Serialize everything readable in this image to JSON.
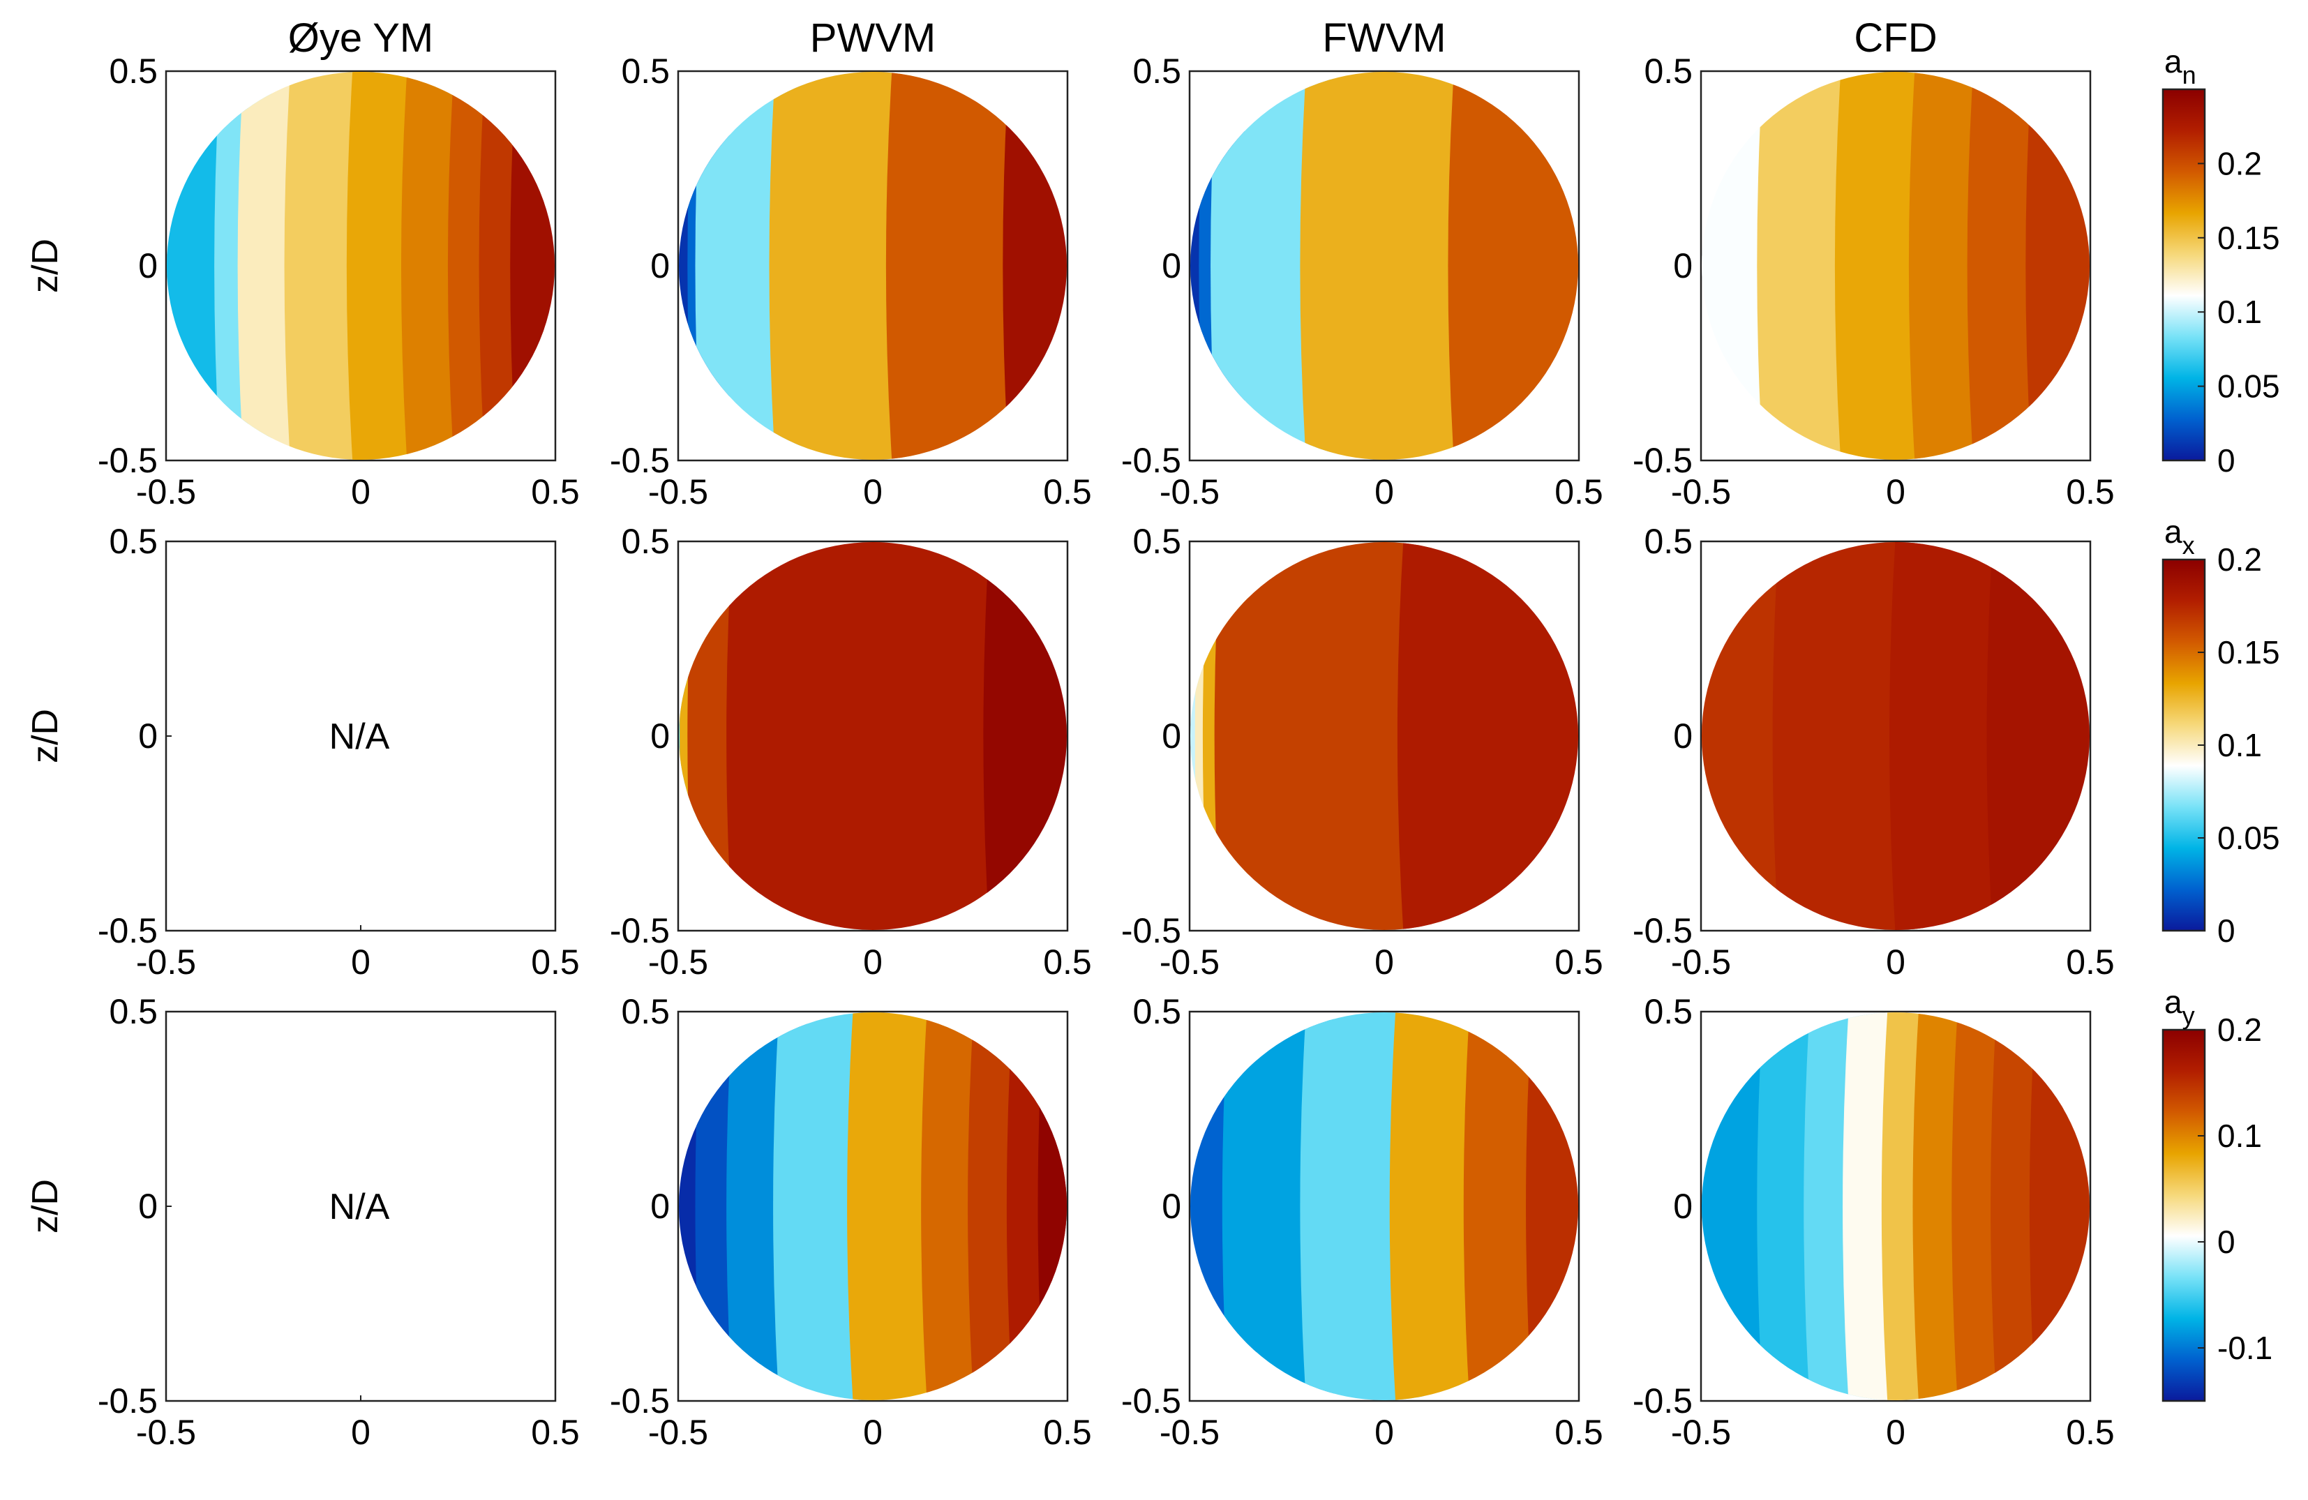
{
  "chart_data": {
    "type": "heatmap",
    "description_axes": "rotor-plane contour maps; x-axis y/D, y-axis z/D",
    "columns": [
      "Øye YM",
      "PWVM",
      "FWVM",
      "CFD"
    ],
    "ylabel": "z/D",
    "xlim": [
      -0.5,
      0.5
    ],
    "ylim": [
      -0.5,
      0.5
    ],
    "x_ticks": [
      "-0.5",
      "0",
      "0.5"
    ],
    "y_ticks": [
      "0.5",
      "0",
      "-0.5"
    ],
    "na_label": "N/A",
    "rows": [
      {
        "variable": "a_n",
        "var_main": "a",
        "var_sub": "n",
        "clim": [
          0,
          0.25
        ],
        "colorbar_ticks": [
          "0.2",
          "0.15",
          "0.1",
          "0.05",
          "0"
        ],
        "colorbar_tick_values": [
          0.2,
          0.15,
          0.1,
          0.05,
          0
        ],
        "panels": [
          {
            "model": "Øye YM",
            "available": true,
            "layers": [
              {
                "x0": -0.5,
                "x1": -0.36,
                "value": 0.06
              },
              {
                "x0": -0.36,
                "x1": -0.3,
                "value": 0.085
              },
              {
                "x0": -0.3,
                "x1": -0.18,
                "value": 0.125
              },
              {
                "x0": -0.18,
                "x1": -0.02,
                "value": 0.145
              },
              {
                "x0": -0.02,
                "x1": 0.12,
                "value": 0.165
              },
              {
                "x0": 0.12,
                "x1": 0.24,
                "value": 0.18
              },
              {
                "x0": 0.24,
                "x1": 0.32,
                "value": 0.195
              },
              {
                "x0": 0.32,
                "x1": 0.4,
                "value": 0.21
              },
              {
                "x0": 0.4,
                "x1": 0.5,
                "value": 0.235
              }
            ]
          },
          {
            "model": "PWVM",
            "available": true,
            "layers": [
              {
                "x0": -0.5,
                "x1": -0.46,
                "value": 0.01
              },
              {
                "x0": -0.46,
                "x1": -0.44,
                "value": 0.03
              },
              {
                "x0": -0.44,
                "x1": -0.25,
                "value": 0.085
              },
              {
                "x0": -0.25,
                "x1": 0.05,
                "value": 0.16
              },
              {
                "x0": 0.05,
                "x1": 0.35,
                "value": 0.195
              },
              {
                "x0": 0.35,
                "x1": 0.5,
                "value": 0.235
              }
            ]
          },
          {
            "model": "FWVM",
            "available": true,
            "layers": [
              {
                "x0": -0.5,
                "x1": -0.46,
                "value": 0.01
              },
              {
                "x0": -0.46,
                "x1": -0.43,
                "value": 0.03
              },
              {
                "x0": -0.43,
                "x1": -0.2,
                "value": 0.085
              },
              {
                "x0": -0.2,
                "x1": 0.18,
                "value": 0.16
              },
              {
                "x0": 0.18,
                "x1": 0.5,
                "value": 0.195
              }
            ]
          },
          {
            "model": "CFD",
            "available": true,
            "layers": [
              {
                "x0": -0.5,
                "x1": -0.34,
                "value": 0.11
              },
              {
                "x0": -0.34,
                "x1": -0.14,
                "value": 0.145
              },
              {
                "x0": -0.14,
                "x1": 0.05,
                "value": 0.165
              },
              {
                "x0": 0.05,
                "x1": 0.2,
                "value": 0.18
              },
              {
                "x0": 0.2,
                "x1": 0.35,
                "value": 0.195
              },
              {
                "x0": 0.35,
                "x1": 0.5,
                "value": 0.21
              }
            ]
          }
        ]
      },
      {
        "variable": "a_x",
        "var_main": "a",
        "var_sub": "x",
        "clim": [
          0,
          0.2
        ],
        "colorbar_ticks": [
          "0.2",
          "0.15",
          "0.1",
          "0.05",
          "0"
        ],
        "colorbar_tick_values": [
          0.2,
          0.15,
          0.1,
          0.05,
          0
        ],
        "panels": [
          {
            "model": "Øye YM",
            "available": false,
            "layers": []
          },
          {
            "model": "PWVM",
            "available": true,
            "layers": [
              {
                "x0": -0.5,
                "x1": -0.48,
                "value": 0.06
              },
              {
                "x0": -0.48,
                "x1": -0.46,
                "value": 0.13
              },
              {
                "x0": -0.46,
                "x1": -0.36,
                "value": 0.165
              },
              {
                "x0": -0.36,
                "x1": 0.3,
                "value": 0.18
              },
              {
                "x0": 0.3,
                "x1": 0.5,
                "value": 0.195
              }
            ]
          },
          {
            "model": "FWVM",
            "available": true,
            "layers": [
              {
                "x0": -0.5,
                "x1": -0.47,
                "value": 0.08
              },
              {
                "x0": -0.47,
                "x1": -0.45,
                "value": 0.1
              },
              {
                "x0": -0.45,
                "x1": -0.42,
                "value": 0.13
              },
              {
                "x0": -0.42,
                "x1": 0.05,
                "value": 0.165
              },
              {
                "x0": 0.05,
                "x1": 0.5,
                "value": 0.18
              }
            ]
          },
          {
            "model": "CFD",
            "available": true,
            "layers": [
              {
                "x0": -0.5,
                "x1": -0.3,
                "value": 0.17
              },
              {
                "x0": -0.3,
                "x1": 0.0,
                "value": 0.175
              },
              {
                "x0": 0.0,
                "x1": 0.25,
                "value": 0.18
              },
              {
                "x0": 0.25,
                "x1": 0.5,
                "value": 0.185
              }
            ]
          }
        ]
      },
      {
        "variable": "a_y",
        "var_main": "a",
        "var_sub": "y",
        "clim": [
          -0.15,
          0.2
        ],
        "colorbar_ticks": [
          "0.2",
          "0.1",
          "0",
          "-0.1"
        ],
        "colorbar_tick_values": [
          0.2,
          0.1,
          0,
          -0.1
        ],
        "panels": [
          {
            "model": "Øye YM",
            "available": false,
            "layers": []
          },
          {
            "model": "PWVM",
            "available": true,
            "layers": [
              {
                "x0": -0.5,
                "x1": -0.44,
                "value": -0.14
              },
              {
                "x0": -0.44,
                "x1": -0.36,
                "value": -0.12
              },
              {
                "x0": -0.36,
                "x1": -0.24,
                "value": -0.09
              },
              {
                "x0": -0.24,
                "x1": -0.05,
                "value": -0.04
              },
              {
                "x0": -0.05,
                "x1": 0.14,
                "value": 0.08
              },
              {
                "x0": 0.14,
                "x1": 0.26,
                "value": 0.115
              },
              {
                "x0": 0.26,
                "x1": 0.36,
                "value": 0.14
              },
              {
                "x0": 0.36,
                "x1": 0.44,
                "value": 0.165
              },
              {
                "x0": 0.44,
                "x1": 0.5,
                "value": 0.195
              }
            ]
          },
          {
            "model": "FWVM",
            "available": true,
            "layers": [
              {
                "x0": -0.5,
                "x1": -0.4,
                "value": -0.11
              },
              {
                "x0": -0.4,
                "x1": -0.2,
                "value": -0.08
              },
              {
                "x0": -0.2,
                "x1": 0.03,
                "value": -0.04
              },
              {
                "x0": 0.03,
                "x1": 0.22,
                "value": 0.08
              },
              {
                "x0": 0.22,
                "x1": 0.38,
                "value": 0.12
              },
              {
                "x0": 0.38,
                "x1": 0.5,
                "value": 0.15
              }
            ]
          },
          {
            "model": "CFD",
            "available": true,
            "layers": [
              {
                "x0": -0.5,
                "x1": -0.34,
                "value": -0.08
              },
              {
                "x0": -0.34,
                "x1": -0.22,
                "value": -0.06
              },
              {
                "x0": -0.22,
                "x1": -0.12,
                "value": -0.04
              },
              {
                "x0": -0.12,
                "x1": -0.02,
                "value": 0.01
              },
              {
                "x0": -0.02,
                "x1": 0.06,
                "value": 0.06
              },
              {
                "x0": 0.06,
                "x1": 0.16,
                "value": 0.1
              },
              {
                "x0": 0.16,
                "x1": 0.26,
                "value": 0.12
              },
              {
                "x0": 0.26,
                "x1": 0.36,
                "value": 0.135
              },
              {
                "x0": 0.36,
                "x1": 0.5,
                "value": 0.15
              }
            ]
          }
        ]
      }
    ],
    "colormap": [
      "#0a1a9c",
      "#0061cf",
      "#00b4e6",
      "#78e2f7",
      "#ffffff",
      "#f6d87a",
      "#e8a400",
      "#d25a00",
      "#b21e00",
      "#8b0000"
    ]
  }
}
